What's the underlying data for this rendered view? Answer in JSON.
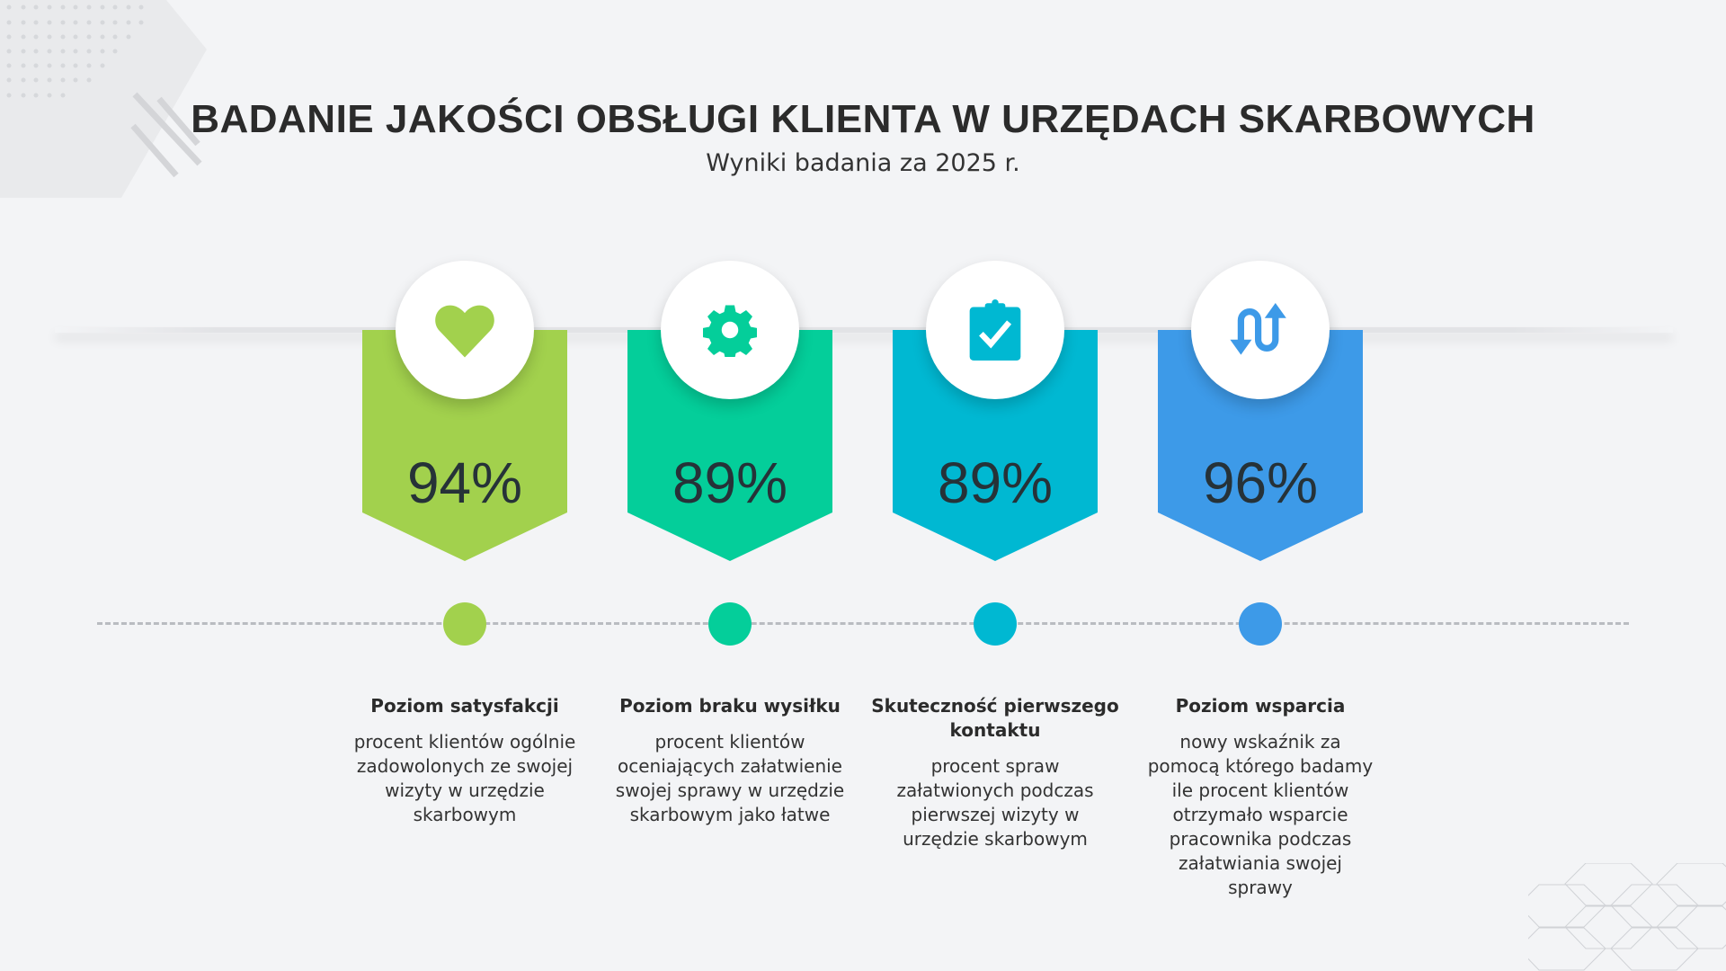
{
  "header": {
    "title": "BADANIE JAKOŚCI OBSŁUGI KLIENTA W URZĘDACH SKARBOWYCH",
    "subtitle": "Wyniki badania za 2025 r."
  },
  "metrics": [
    {
      "value": "94%",
      "label": "Poziom satysfakcji",
      "description": "procent klientów ogólnie zadowolonych ze swojej wizyty w urzędzie skarbowym",
      "color": "#a2d14d",
      "icon": "heart-icon"
    },
    {
      "value": "89%",
      "label": "Poziom braku wysiłku",
      "description": "procent klientów oceniających załatwienie swojej sprawy w urzędzie skarbowym jako łatwe",
      "color": "#04ce9a",
      "icon": "gear-icon"
    },
    {
      "value": "89%",
      "label": "Skuteczność pierwszego kontaktu",
      "description": "procent spraw załatwionych podczas pierwszej wizyty w urzędzie skarbowym",
      "color": "#00b8d2",
      "icon": "clipboard-check-icon"
    },
    {
      "value": "96%",
      "label": "Poziom wsparcia",
      "description": "nowy wskaźnik za pomocą którego badamy ile procent klientów otrzymało wsparcie pracownika podczas załatwiania swojej sprawy",
      "color": "#3d9ae8",
      "icon": "exchange-arrows-icon"
    }
  ]
}
